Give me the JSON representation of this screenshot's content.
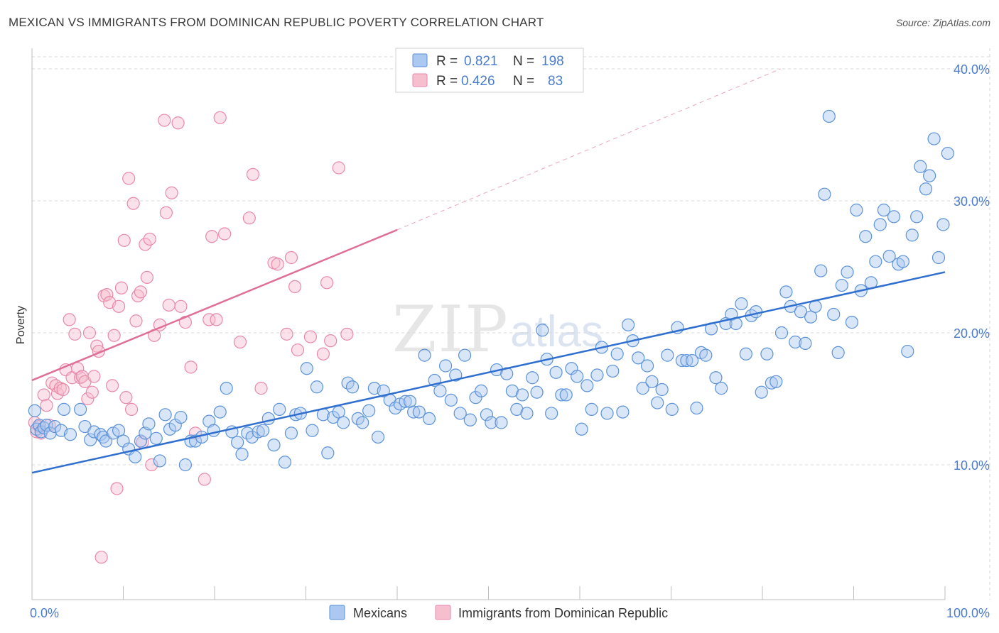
{
  "title": "MEXICAN VS IMMIGRANTS FROM DOMINICAN REPUBLIC POVERTY CORRELATION CHART",
  "source": "Source: ZipAtlas.com",
  "watermark": {
    "zip": "ZIP",
    "atlas": "atlas"
  },
  "colors": {
    "blue_fill": "#aac8f0",
    "blue_stroke": "#5b92d8",
    "blue_line": "#2f6fcf",
    "pink_fill": "#f6bfd0",
    "pink_stroke": "#e889a8",
    "pink_line": "#e06f96",
    "tick": "#4a7ccf",
    "grid": "#d8d8d8"
  },
  "legend": {
    "r_label": "R =",
    "n_label": "N =",
    "rows": [
      {
        "series": "blue",
        "r": "0.821",
        "n": "198"
      },
      {
        "series": "pink",
        "r": "0.426",
        "n": "83"
      }
    ]
  },
  "chart_data": {
    "type": "scatter",
    "title": "MEXICAN VS IMMIGRANTS FROM DOMINICAN REPUBLIC POVERTY CORRELATION CHART",
    "ylabel": "Poverty",
    "xlabel": "",
    "xlim": [
      0,
      100
    ],
    "ylim": [
      0,
      42
    ],
    "x_tick_labels": [
      "0.0%",
      "100.0%"
    ],
    "y_ticks": [
      10,
      20,
      30,
      40
    ],
    "y_tick_labels": [
      "10.0%",
      "20.0%",
      "30.0%",
      "40.0%"
    ],
    "grid": true,
    "legend_bottom": [
      "Mexicans",
      "Immigrants from Dominican Republic"
    ],
    "series": [
      {
        "name": "Mexicans",
        "color": "blue",
        "trend": {
          "x0": 0,
          "y0": 9.4,
          "x1": 100,
          "y1": 24.6
        },
        "points": [
          [
            0.3,
            14.1
          ],
          [
            0.5,
            12.7
          ],
          [
            0.8,
            13.0
          ],
          [
            1.0,
            12.5
          ],
          [
            1.3,
            12.8
          ],
          [
            1.6,
            13.0
          ],
          [
            2.0,
            12.4
          ],
          [
            2.5,
            12.9
          ],
          [
            3.2,
            12.6
          ],
          [
            3.5,
            14.2
          ],
          [
            4.2,
            12.3
          ],
          [
            5.3,
            14.2
          ],
          [
            5.8,
            12.9
          ],
          [
            6.4,
            11.9
          ],
          [
            6.8,
            12.5
          ],
          [
            7.5,
            12.3
          ],
          [
            7.8,
            12.1
          ],
          [
            8.1,
            11.8
          ],
          [
            8.9,
            12.4
          ],
          [
            9.5,
            12.6
          ],
          [
            10.0,
            11.8
          ],
          [
            10.6,
            11.2
          ],
          [
            11.3,
            10.6
          ],
          [
            11.9,
            11.8
          ],
          [
            12.4,
            12.4
          ],
          [
            12.8,
            13.1
          ],
          [
            13.6,
            12.0
          ],
          [
            14.0,
            10.3
          ],
          [
            14.6,
            13.8
          ],
          [
            15.1,
            12.7
          ],
          [
            15.7,
            13.0
          ],
          [
            16.3,
            13.6
          ],
          [
            16.8,
            10.0
          ],
          [
            17.4,
            11.8
          ],
          [
            17.9,
            11.8
          ],
          [
            18.6,
            12.1
          ],
          [
            19.4,
            13.3
          ],
          [
            19.9,
            12.6
          ],
          [
            20.6,
            14.0
          ],
          [
            21.3,
            15.8
          ],
          [
            21.9,
            12.5
          ],
          [
            22.5,
            11.7
          ],
          [
            23.0,
            10.8
          ],
          [
            23.6,
            12.4
          ],
          [
            24.1,
            12.1
          ],
          [
            24.8,
            12.5
          ],
          [
            25.3,
            12.6
          ],
          [
            25.9,
            13.5
          ],
          [
            26.5,
            11.5
          ],
          [
            27.1,
            14.2
          ],
          [
            27.7,
            10.2
          ],
          [
            28.4,
            12.4
          ],
          [
            28.9,
            13.8
          ],
          [
            29.4,
            13.9
          ],
          [
            30.1,
            17.3
          ],
          [
            30.7,
            12.6
          ],
          [
            31.2,
            15.9
          ],
          [
            31.9,
            13.8
          ],
          [
            32.4,
            10.9
          ],
          [
            33.0,
            13.6
          ],
          [
            33.6,
            14.0
          ],
          [
            34.1,
            13.2
          ],
          [
            34.6,
            16.2
          ],
          [
            35.1,
            15.9
          ],
          [
            35.7,
            13.5
          ],
          [
            36.2,
            13.2
          ],
          [
            36.9,
            14.1
          ],
          [
            37.5,
            15.8
          ],
          [
            37.9,
            12.1
          ],
          [
            38.5,
            15.6
          ],
          [
            39.2,
            14.9
          ],
          [
            39.8,
            14.3
          ],
          [
            40.3,
            14.6
          ],
          [
            40.9,
            14.8
          ],
          [
            41.4,
            14.8
          ],
          [
            41.8,
            14.0
          ],
          [
            42.4,
            14.0
          ],
          [
            43.0,
            18.3
          ],
          [
            43.5,
            13.5
          ],
          [
            44.1,
            16.4
          ],
          [
            44.7,
            15.6
          ],
          [
            45.3,
            17.5
          ],
          [
            45.9,
            14.9
          ],
          [
            46.4,
            16.8
          ],
          [
            46.9,
            13.9
          ],
          [
            47.4,
            18.3
          ],
          [
            48.0,
            13.4
          ],
          [
            48.6,
            15.1
          ],
          [
            49.2,
            15.6
          ],
          [
            49.8,
            13.8
          ],
          [
            50.3,
            13.2
          ],
          [
            50.9,
            17.2
          ],
          [
            51.4,
            13.2
          ],
          [
            52.0,
            16.9
          ],
          [
            52.6,
            15.6
          ],
          [
            53.1,
            14.2
          ],
          [
            53.7,
            15.3
          ],
          [
            54.2,
            13.9
          ],
          [
            54.8,
            16.6
          ],
          [
            55.3,
            15.5
          ],
          [
            55.9,
            20.2
          ],
          [
            56.4,
            18.0
          ],
          [
            56.9,
            13.9
          ],
          [
            57.4,
            17.0
          ],
          [
            58.0,
            15.3
          ],
          [
            58.5,
            15.3
          ],
          [
            59.1,
            17.3
          ],
          [
            59.7,
            16.7
          ],
          [
            60.2,
            12.7
          ],
          [
            60.8,
            16.0
          ],
          [
            61.3,
            14.2
          ],
          [
            61.9,
            16.8
          ],
          [
            62.4,
            18.9
          ],
          [
            63.0,
            13.9
          ],
          [
            63.6,
            17.1
          ],
          [
            64.1,
            18.4
          ],
          [
            64.7,
            14.0
          ],
          [
            65.3,
            20.6
          ],
          [
            65.8,
            19.4
          ],
          [
            66.4,
            18.1
          ],
          [
            66.9,
            15.8
          ],
          [
            67.4,
            17.5
          ],
          [
            67.9,
            16.3
          ],
          [
            68.5,
            14.7
          ],
          [
            69.0,
            15.7
          ],
          [
            69.6,
            18.3
          ],
          [
            70.1,
            14.2
          ],
          [
            70.7,
            20.4
          ],
          [
            71.2,
            17.9
          ],
          [
            71.7,
            17.9
          ],
          [
            72.3,
            17.9
          ],
          [
            72.8,
            14.3
          ],
          [
            73.3,
            18.5
          ],
          [
            73.8,
            18.3
          ],
          [
            74.4,
            20.3
          ],
          [
            74.9,
            16.6
          ],
          [
            75.5,
            15.8
          ],
          [
            76.0,
            20.7
          ],
          [
            76.6,
            21.4
          ],
          [
            77.1,
            20.7
          ],
          [
            77.7,
            22.2
          ],
          [
            78.2,
            18.4
          ],
          [
            78.8,
            21.3
          ],
          [
            79.3,
            21.6
          ],
          [
            79.9,
            15.5
          ],
          [
            80.5,
            18.4
          ],
          [
            81.0,
            16.2
          ],
          [
            81.5,
            16.3
          ],
          [
            82.1,
            20.0
          ],
          [
            82.6,
            23.1
          ],
          [
            83.1,
            22.0
          ],
          [
            83.6,
            19.3
          ],
          [
            84.2,
            21.6
          ],
          [
            84.7,
            19.2
          ],
          [
            85.3,
            21.2
          ],
          [
            85.8,
            22.0
          ],
          [
            86.4,
            24.7
          ],
          [
            86.8,
            30.5
          ],
          [
            87.3,
            36.4
          ],
          [
            87.8,
            21.4
          ],
          [
            88.3,
            18.5
          ],
          [
            88.7,
            23.6
          ],
          [
            89.3,
            24.6
          ],
          [
            89.8,
            20.8
          ],
          [
            90.3,
            29.3
          ],
          [
            90.8,
            23.2
          ],
          [
            91.3,
            27.3
          ],
          [
            91.9,
            23.8
          ],
          [
            92.4,
            25.4
          ],
          [
            92.9,
            28.2
          ],
          [
            93.3,
            29.3
          ],
          [
            93.9,
            25.8
          ],
          [
            94.4,
            28.8
          ],
          [
            94.9,
            25.2
          ],
          [
            95.4,
            25.4
          ],
          [
            95.9,
            18.6
          ],
          [
            96.4,
            27.4
          ],
          [
            96.9,
            28.8
          ],
          [
            97.3,
            32.6
          ],
          [
            97.9,
            30.9
          ],
          [
            98.3,
            31.9
          ],
          [
            98.8,
            34.7
          ],
          [
            99.3,
            25.7
          ],
          [
            99.8,
            28.2
          ],
          [
            100.3,
            33.6
          ]
        ]
      },
      {
        "name": "Immigrants from Dominican Republic",
        "color": "pink",
        "trend": {
          "x0": 0,
          "y0": 16.4,
          "x1": 40,
          "y1": 27.8,
          "dashed_to": {
            "x": 82,
            "y": 40.0
          }
        },
        "points": [
          [
            0.3,
            13.2
          ],
          [
            0.5,
            12.5
          ],
          [
            0.8,
            12.9
          ],
          [
            1.0,
            12.4
          ],
          [
            1.3,
            15.3
          ],
          [
            1.6,
            14.5
          ],
          [
            1.9,
            13.0
          ],
          [
            2.2,
            16.2
          ],
          [
            2.6,
            16.0
          ],
          [
            2.8,
            15.4
          ],
          [
            3.1,
            15.8
          ],
          [
            3.4,
            15.7
          ],
          [
            3.7,
            17.2
          ],
          [
            4.1,
            21.0
          ],
          [
            4.4,
            16.6
          ],
          [
            4.7,
            19.9
          ],
          [
            5.0,
            17.3
          ],
          [
            5.3,
            16.6
          ],
          [
            5.5,
            16.7
          ],
          [
            5.8,
            16.3
          ],
          [
            6.1,
            15.0
          ],
          [
            6.3,
            20.0
          ],
          [
            6.6,
            15.5
          ],
          [
            6.8,
            16.7
          ],
          [
            7.1,
            19.0
          ],
          [
            7.3,
            18.6
          ],
          [
            7.6,
            3.0
          ],
          [
            7.9,
            22.8
          ],
          [
            8.2,
            22.9
          ],
          [
            8.5,
            22.3
          ],
          [
            8.8,
            16.0
          ],
          [
            9.0,
            19.8
          ],
          [
            9.3,
            8.2
          ],
          [
            9.5,
            22.0
          ],
          [
            9.8,
            23.4
          ],
          [
            10.1,
            27.0
          ],
          [
            10.3,
            15.1
          ],
          [
            10.6,
            31.7
          ],
          [
            10.9,
            14.2
          ],
          [
            11.1,
            29.8
          ],
          [
            11.4,
            20.9
          ],
          [
            11.6,
            22.8
          ],
          [
            11.9,
            23.1
          ],
          [
            12.1,
            11.7
          ],
          [
            12.4,
            26.7
          ],
          [
            12.6,
            24.2
          ],
          [
            12.9,
            27.1
          ],
          [
            13.1,
            10.0
          ],
          [
            13.4,
            19.8
          ],
          [
            14.0,
            20.6
          ],
          [
            14.5,
            36.1
          ],
          [
            14.7,
            29.1
          ],
          [
            15.0,
            22.1
          ],
          [
            15.3,
            30.6
          ],
          [
            16.0,
            35.9
          ],
          [
            16.3,
            22.0
          ],
          [
            16.8,
            20.8
          ],
          [
            17.4,
            17.4
          ],
          [
            17.9,
            12.4
          ],
          [
            18.9,
            8.9
          ],
          [
            19.4,
            21.0
          ],
          [
            19.7,
            27.3
          ],
          [
            20.2,
            21.0
          ],
          [
            20.6,
            36.3
          ],
          [
            21.1,
            27.5
          ],
          [
            22.8,
            19.3
          ],
          [
            23.8,
            28.7
          ],
          [
            24.2,
            32.0
          ],
          [
            25.1,
            15.8
          ],
          [
            26.5,
            25.3
          ],
          [
            26.9,
            25.2
          ],
          [
            27.9,
            19.9
          ],
          [
            28.4,
            25.7
          ],
          [
            28.8,
            23.5
          ],
          [
            29.1,
            18.7
          ],
          [
            30.5,
            19.7
          ],
          [
            31.9,
            18.4
          ],
          [
            32.3,
            23.8
          ],
          [
            32.7,
            19.4
          ],
          [
            33.6,
            32.5
          ],
          [
            34.5,
            19.9
          ]
        ]
      }
    ]
  }
}
